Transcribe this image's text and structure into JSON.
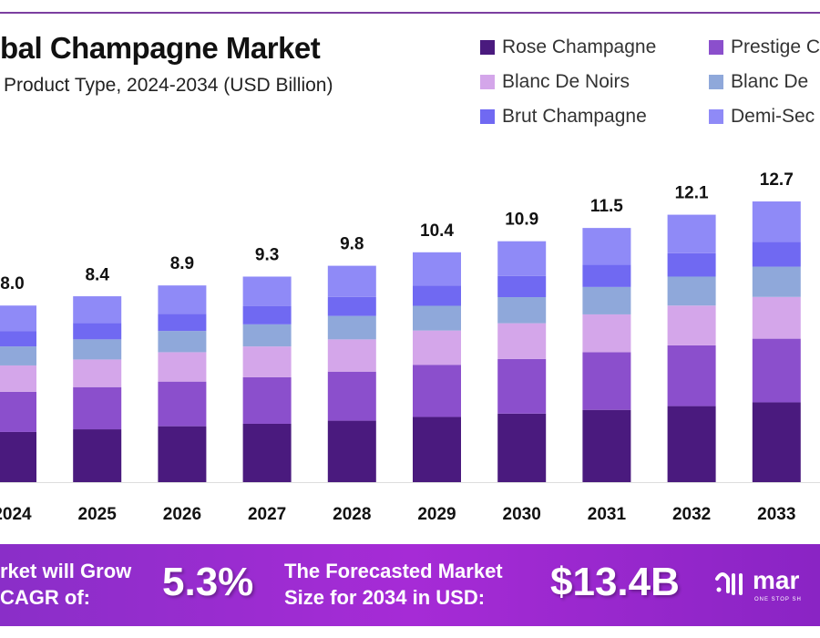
{
  "header": {
    "title": "bal Champagne Market",
    "subtitle": "Product Type, 2024-2034 (USD Billion)"
  },
  "legend": [
    {
      "label": "Rose Champagne",
      "color": "#4a1a7e"
    },
    {
      "label": "Prestige C",
      "color": "#8b4fcc"
    },
    {
      "label": "Blanc De Noirs",
      "color": "#d4a6ea"
    },
    {
      "label": "Blanc De",
      "color": "#8fa8da"
    },
    {
      "label": "Brut Champagne",
      "color": "#7069f2"
    },
    {
      "label": "Demi-Sec",
      "color": "#8f8af7"
    }
  ],
  "chart_data": {
    "type": "bar",
    "stacked": true,
    "title": "bal Champagne Market",
    "subtitle": "Product Type, 2024-2034 (USD Billion)",
    "categories": [
      "2024",
      "2025",
      "2026",
      "2027",
      "2028",
      "2029",
      "2030",
      "2031",
      "2032",
      "2033"
    ],
    "totals": [
      8.0,
      8.4,
      8.9,
      9.3,
      9.8,
      10.4,
      10.9,
      11.5,
      12.1,
      12.7
    ],
    "total_labels": [
      "8.0",
      "8.4",
      "8.9",
      "9.3",
      "9.8",
      "10.4",
      "10.9",
      "11.5",
      "12.1",
      "12.7"
    ],
    "series": [
      {
        "name": "Rose Champagne",
        "values": [
          2.27,
          2.39,
          2.53,
          2.64,
          2.78,
          2.95,
          3.1,
          3.27,
          3.44,
          3.61
        ]
      },
      {
        "name": "Prestige C",
        "values": [
          1.82,
          1.91,
          2.02,
          2.11,
          2.22,
          2.36,
          2.47,
          2.61,
          2.75,
          2.88
        ]
      },
      {
        "name": "Blanc De Noirs",
        "values": [
          1.19,
          1.25,
          1.33,
          1.39,
          1.46,
          1.55,
          1.62,
          1.71,
          1.8,
          1.89
        ]
      },
      {
        "name": "Blanc De",
        "values": [
          0.86,
          0.91,
          0.96,
          1.0,
          1.06,
          1.12,
          1.18,
          1.24,
          1.31,
          1.37
        ]
      },
      {
        "name": "Brut Champagne",
        "values": [
          0.7,
          0.74,
          0.78,
          0.82,
          0.86,
          0.92,
          0.96,
          1.01,
          1.06,
          1.12
        ]
      },
      {
        "name": "Demi-Sec",
        "values": [
          1.15,
          1.21,
          1.28,
          1.34,
          1.41,
          1.5,
          1.57,
          1.66,
          1.74,
          1.83
        ]
      }
    ],
    "legend_position": "top-right",
    "grid": false
  },
  "banner": {
    "cagr_text_line1": "rket will Grow",
    "cagr_text_line2": "CAGR of:",
    "cagr_value": "5.3%",
    "forecast_text_line1": "The Forecasted Market",
    "forecast_text_line2": "Size for 2034 in USD:",
    "forecast_value": "$13.4B",
    "logo_text": "mar",
    "logo_tagline": "ONE STOP SH"
  }
}
